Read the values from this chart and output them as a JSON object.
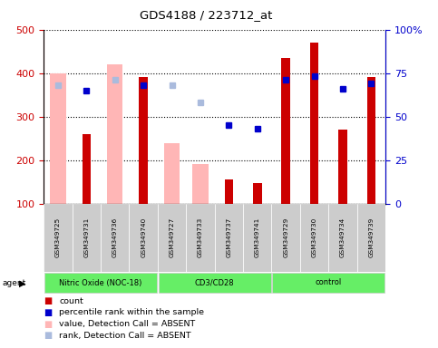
{
  "title": "GDS4188 / 223712_at",
  "samples": [
    "GSM349725",
    "GSM349731",
    "GSM349736",
    "GSM349740",
    "GSM349727",
    "GSM349733",
    "GSM349737",
    "GSM349741",
    "GSM349729",
    "GSM349730",
    "GSM349734",
    "GSM349739"
  ],
  "bar_values": [
    null,
    260,
    null,
    390,
    null,
    null,
    155,
    148,
    435,
    470,
    270,
    390
  ],
  "absent_bar_values": [
    400,
    null,
    420,
    null,
    238,
    190,
    null,
    null,
    null,
    null,
    null,
    null
  ],
  "absent_bar_color": "#ffb6b6",
  "bar_color": "#cc0000",
  "rank_present": [
    null,
    65,
    null,
    68,
    null,
    null,
    45,
    43,
    71,
    73,
    66,
    69
  ],
  "rank_absent": [
    68,
    null,
    71,
    null,
    68,
    58,
    null,
    null,
    null,
    null,
    null,
    null
  ],
  "rank_present_color": "#0000cc",
  "rank_absent_color": "#aabbdd",
  "ylim_left": [
    100,
    500
  ],
  "ylim_right": [
    0,
    100
  ],
  "yticks_left": [
    100,
    200,
    300,
    400,
    500
  ],
  "ytick_labels_left": [
    "100",
    "200",
    "300",
    "400",
    "500"
  ],
  "yticks_right": [
    0,
    25,
    50,
    75,
    100
  ],
  "ytick_labels_right": [
    "0",
    "25",
    "50",
    "75",
    "100%"
  ],
  "left_axis_color": "#cc0000",
  "right_axis_color": "#0000cc",
  "background_color": "#ffffff",
  "legend_items": [
    {
      "color": "#cc0000",
      "label": "count"
    },
    {
      "color": "#0000cc",
      "label": "percentile rank within the sample"
    },
    {
      "color": "#ffb6b6",
      "label": "value, Detection Call = ABSENT"
    },
    {
      "color": "#aabbdd",
      "label": "rank, Detection Call = ABSENT"
    }
  ],
  "groups": [
    {
      "label": "Nitric Oxide (NOC-18)",
      "indices": [
        0,
        1,
        2,
        3
      ]
    },
    {
      "label": "CD3/CD28",
      "indices": [
        4,
        5,
        6,
        7
      ]
    },
    {
      "label": "control",
      "indices": [
        8,
        9,
        10,
        11
      ]
    }
  ],
  "figsize": [
    4.83,
    3.84
  ],
  "dpi": 100
}
